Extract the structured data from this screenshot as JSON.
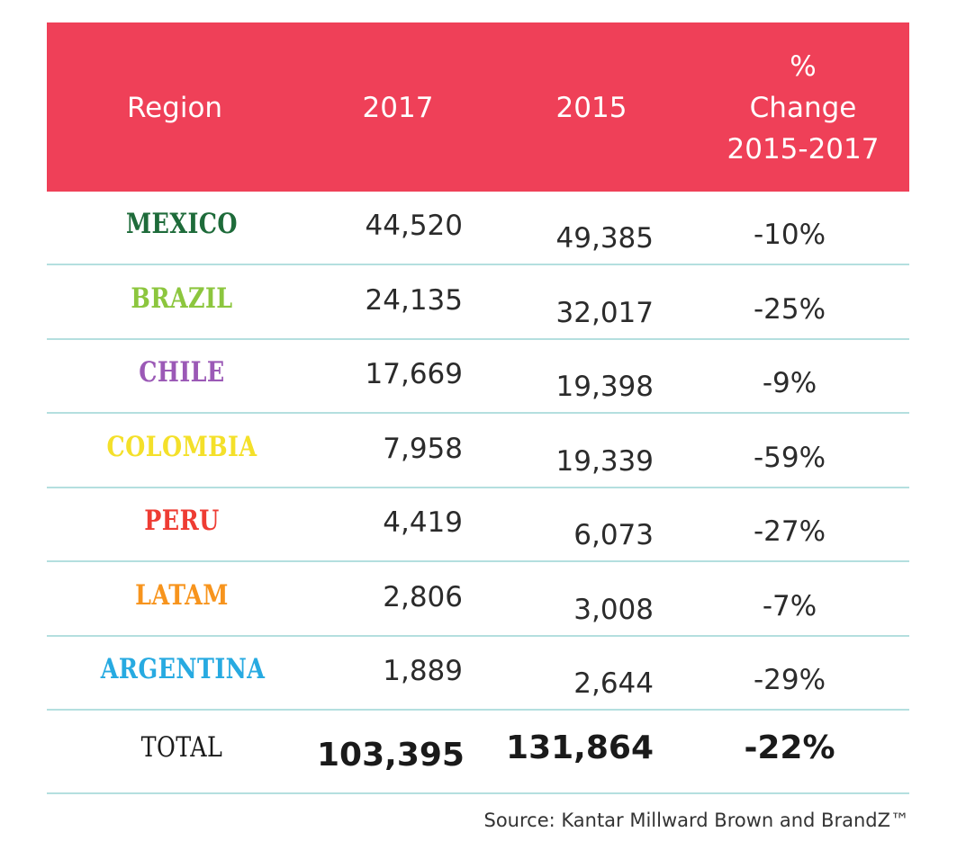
{
  "chart_data": {
    "type": "table",
    "columns": [
      "Region",
      "2017",
      "2015",
      "% Change 2015-2017"
    ],
    "header": {
      "region": "Region",
      "y2017": "2017",
      "y2015": "2015",
      "change_line1": "%",
      "change_line2": "Change",
      "change_line3": "2015-2017"
    },
    "rows": [
      {
        "region": "MEXICO",
        "v2017": "44,520",
        "v2015": "49,385",
        "pct": "-10%",
        "color": "#1e6b3a"
      },
      {
        "region": "BRAZIL",
        "v2017": "24,135",
        "v2015": "32,017",
        "pct": "-25%",
        "color": "#8cc63e"
      },
      {
        "region": "CHILE",
        "v2017": "17,669",
        "v2015": "19,398",
        "pct": "-9%",
        "color": "#9b59b6"
      },
      {
        "region": "COLOMBIA",
        "v2017": "7,958",
        "v2015": "19,339",
        "pct": "-59%",
        "color": "#f4e02a"
      },
      {
        "region": "PERU",
        "v2017": "4,419",
        "v2015": "6,073",
        "pct": "-27%",
        "color": "#ee3c33"
      },
      {
        "region": "LATAM",
        "v2017": "2,806",
        "v2015": "3,008",
        "pct": "-7%",
        "color": "#f7941d"
      },
      {
        "region": "ARGENTINA",
        "v2017": "1,889",
        "v2015": "2,644",
        "pct": "-29%",
        "color": "#27aae1"
      }
    ],
    "total": {
      "region": "TOTAL",
      "v2017": "103,395",
      "v2015": "131,864",
      "pct": "-22%"
    },
    "source": "Source: Kantar Millward Brown and BrandZ™"
  },
  "colors": {
    "header_bg": "#ef4058",
    "separator": "#b4dfdf"
  }
}
